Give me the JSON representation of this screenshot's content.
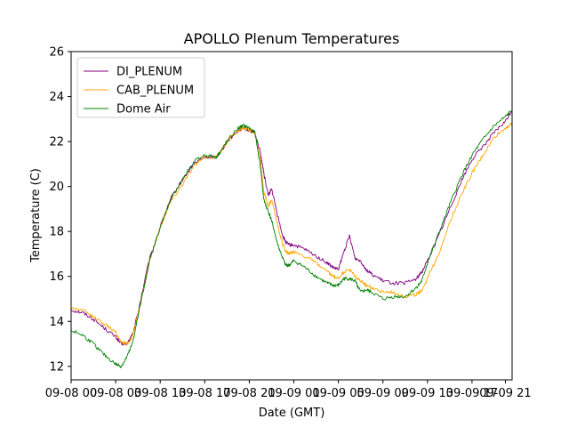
{
  "chart_data": {
    "type": "line",
    "title": "APOLLO Plenum Temperatures",
    "xlabel": "Date (GMT)",
    "ylabel": "Temperature (C)",
    "ylim": [
      11.4,
      26
    ],
    "xlim": [
      0,
      39.6
    ],
    "x_unit": "hours since 09-08 00 GMT",
    "yticks": [
      12,
      14,
      16,
      18,
      20,
      22,
      24,
      26
    ],
    "xticks": [
      {
        "x": 0,
        "label": "09-08 00"
      },
      {
        "x": 4,
        "label": "09-08 03"
      },
      {
        "x": 8,
        "label": "09-08 13"
      },
      {
        "x": 12,
        "label": "09-08 17"
      },
      {
        "x": 16,
        "label": "09-08 21"
      },
      {
        "x": 20,
        "label": "09-09 01"
      },
      {
        "x": 24,
        "label": "09-09 05"
      },
      {
        "x": 28,
        "label": "09-09 09"
      },
      {
        "x": 32,
        "label": "09-09 13"
      },
      {
        "x": 36,
        "label": "09-09 17"
      },
      {
        "x": 39,
        "label": "09-09 21"
      }
    ],
    "legend_position": "top-left",
    "series": [
      {
        "name": "DI_PLENUM",
        "color": "#800080",
        "x": [
          0,
          1,
          2,
          3,
          4,
          4.5,
          5,
          5.5,
          6,
          7,
          8,
          9,
          10,
          11,
          12,
          13,
          13.5,
          14,
          15,
          15.5,
          16,
          16.5,
          17,
          17.3,
          17.7,
          18,
          18.5,
          19,
          19.3,
          19.6,
          20,
          21,
          22,
          23,
          23.5,
          24,
          24.5,
          25,
          25.5,
          26,
          26.5,
          27,
          28,
          29,
          30,
          31,
          31.5,
          32,
          33,
          34,
          35,
          36,
          37,
          38,
          39,
          39.6
        ],
        "y": [
          14.5,
          14.4,
          14.1,
          13.7,
          13.3,
          13.0,
          13.0,
          13.4,
          14.4,
          16.7,
          18.2,
          19.5,
          20.3,
          21.0,
          21.3,
          21.3,
          21.6,
          22.0,
          22.5,
          22.6,
          22.5,
          22.4,
          21.5,
          20.6,
          19.6,
          19.9,
          18.8,
          17.8,
          17.5,
          17.4,
          17.4,
          17.2,
          16.9,
          16.6,
          16.4,
          16.3,
          17.1,
          17.8,
          16.8,
          16.7,
          16.3,
          16.1,
          15.8,
          15.7,
          15.7,
          15.9,
          16.2,
          16.7,
          17.8,
          19.0,
          20.2,
          21.2,
          21.8,
          22.4,
          22.9,
          23.4
        ]
      },
      {
        "name": "CAB_PLENUM",
        "color": "#ffa500",
        "x": [
          0,
          1,
          2,
          3,
          4,
          4.5,
          5,
          5.5,
          6,
          7,
          8,
          9,
          10,
          11,
          12,
          13,
          13.5,
          14,
          15,
          15.5,
          16,
          16.5,
          17,
          17.3,
          17.7,
          18,
          18.5,
          19,
          19.3,
          19.6,
          20,
          21,
          22,
          23,
          23.5,
          24,
          24.5,
          25,
          25.5,
          26,
          26.5,
          27,
          28,
          29,
          30,
          31,
          31.5,
          32,
          33,
          34,
          35,
          36,
          37,
          38,
          39,
          39.6
        ],
        "y": [
          14.6,
          14.5,
          14.2,
          13.9,
          13.5,
          13.1,
          13.0,
          13.3,
          14.3,
          16.6,
          18.2,
          19.4,
          20.1,
          20.9,
          21.3,
          21.3,
          21.6,
          22.0,
          22.5,
          22.6,
          22.5,
          22.4,
          21.2,
          19.8,
          19.1,
          19.4,
          18.4,
          17.4,
          17.1,
          17.0,
          17.1,
          16.9,
          16.6,
          16.2,
          16.0,
          15.9,
          16.2,
          16.3,
          16.0,
          15.8,
          15.6,
          15.5,
          15.3,
          15.3,
          15.1,
          15.2,
          15.4,
          15.9,
          17.0,
          18.4,
          19.6,
          20.6,
          21.4,
          22.2,
          22.6,
          22.8
        ]
      },
      {
        "name": "Dome Air",
        "color": "#008000",
        "x": [
          0,
          1,
          2,
          3,
          4,
          4.5,
          5,
          5.5,
          6,
          7,
          8,
          9,
          10,
          11,
          12,
          13,
          13.5,
          14,
          15,
          15.5,
          16,
          16.5,
          17,
          17.3,
          17.7,
          18,
          18.5,
          19,
          19.3,
          19.6,
          20,
          21,
          22,
          23,
          23.5,
          24,
          24.5,
          25,
          25.5,
          26,
          26.5,
          27,
          28,
          29,
          30,
          31,
          31.5,
          32,
          33,
          34,
          35,
          36,
          37,
          38,
          39,
          39.6
        ],
        "y": [
          13.6,
          13.4,
          13.0,
          12.5,
          12.1,
          12.0,
          12.4,
          13.0,
          14.2,
          16.6,
          18.2,
          19.5,
          20.3,
          21.1,
          21.4,
          21.3,
          21.6,
          22.0,
          22.6,
          22.7,
          22.6,
          22.4,
          20.9,
          19.4,
          18.9,
          18.5,
          17.5,
          16.8,
          16.5,
          16.5,
          16.7,
          16.4,
          16.0,
          15.7,
          15.6,
          15.6,
          15.9,
          15.9,
          15.8,
          15.3,
          15.4,
          15.3,
          15.0,
          15.1,
          15.1,
          15.5,
          15.8,
          16.6,
          17.9,
          19.2,
          20.4,
          21.4,
          22.1,
          22.7,
          23.1,
          23.4
        ]
      }
    ]
  }
}
